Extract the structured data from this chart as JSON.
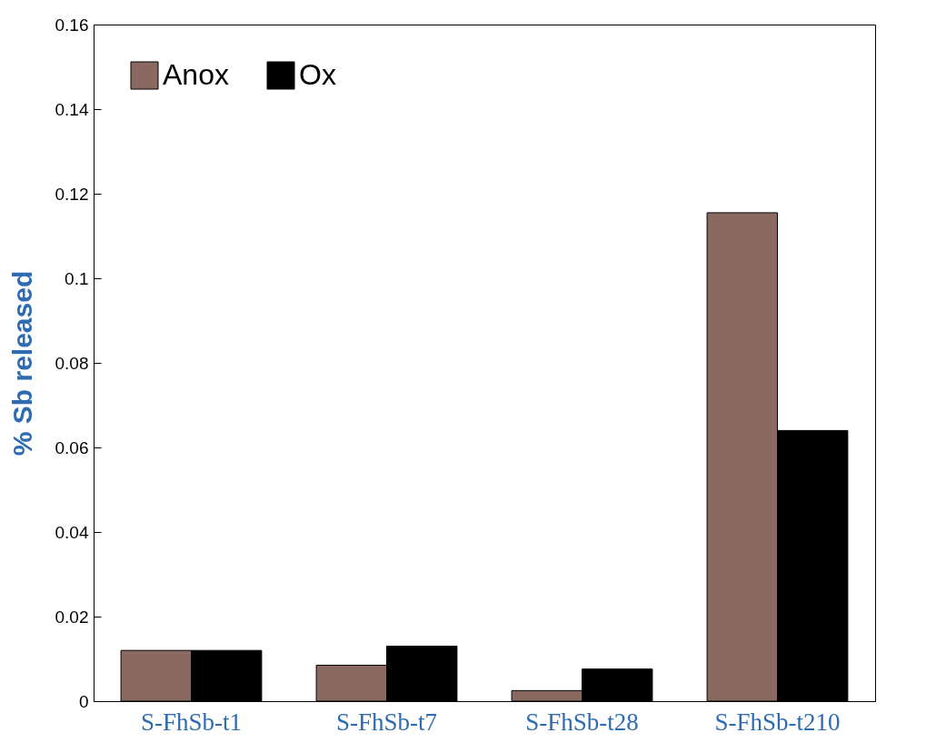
{
  "chart_data": {
    "type": "bar",
    "ylabel": "% Sb released",
    "categories": [
      "S-FhSb-t1",
      "S-FhSb-t7",
      "S-FhSb-t28",
      "S-FhSb-t210"
    ],
    "series": [
      {
        "name": "Anox",
        "color": "#8a6a60",
        "values": [
          0.012,
          0.0085,
          0.0025,
          0.1155
        ]
      },
      {
        "name": "Ox",
        "color": "#000000",
        "values": [
          0.012,
          0.013,
          0.0076,
          0.064
        ]
      }
    ],
    "ylim": [
      0,
      0.16
    ],
    "yticks": [
      0,
      0.02,
      0.04,
      0.06,
      0.08,
      0.1,
      0.12,
      0.14,
      0.16
    ],
    "grid": false,
    "legend": "top left"
  }
}
